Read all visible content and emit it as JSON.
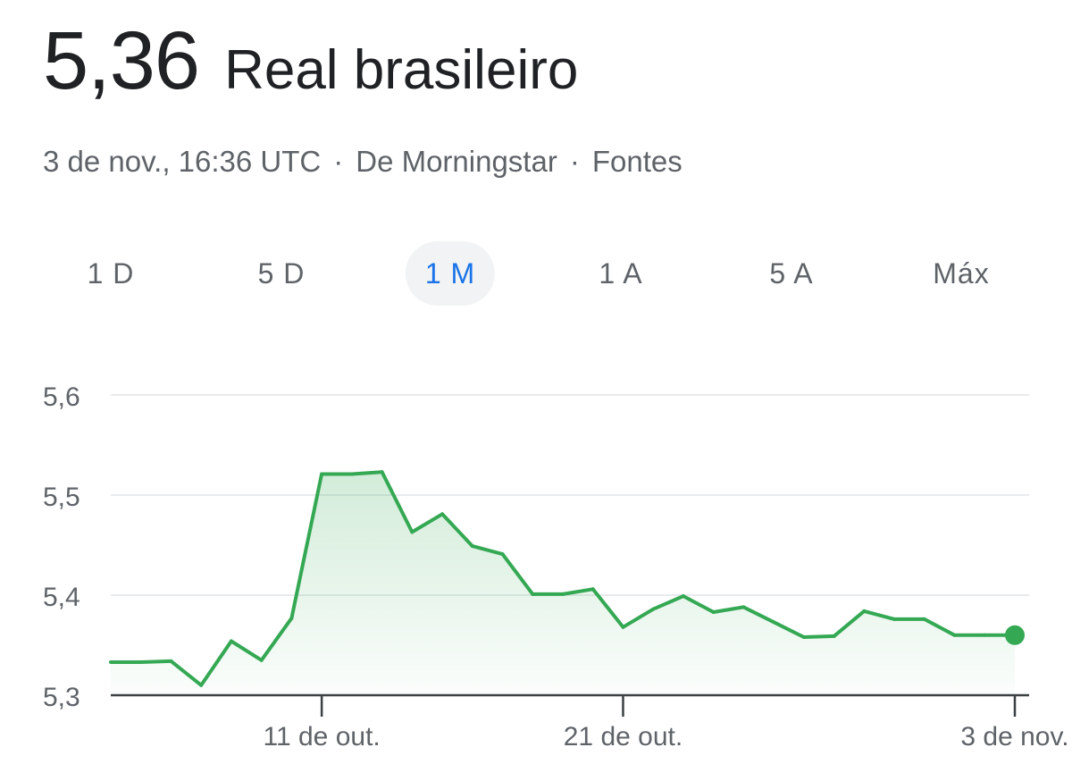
{
  "header": {
    "price": "5,36",
    "currency_name": "Real brasileiro"
  },
  "meta": {
    "timestamp": "3 de nov., 16:36 UTC",
    "separator": "·",
    "source": "De Morningstar",
    "sources_link": "Fontes"
  },
  "tabs": [
    {
      "label": "1 D",
      "active": false
    },
    {
      "label": "5 D",
      "active": false
    },
    {
      "label": "1 M",
      "active": true
    },
    {
      "label": "1 A",
      "active": false
    },
    {
      "label": "5 A",
      "active": false
    },
    {
      "label": "Máx",
      "active": false
    }
  ],
  "colors": {
    "line": "#34a853",
    "fill_top": "#34a853",
    "grid": "#e8eaed",
    "axis": "#5f6368",
    "accent": "#1a73e8"
  },
  "chart_data": {
    "type": "area",
    "title": "",
    "xlabel": "",
    "ylabel": "",
    "ylim": [
      5.3,
      5.6
    ],
    "yticks": [
      5.3,
      5.4,
      5.5,
      5.6
    ],
    "ytick_labels": [
      "5,3",
      "5,4",
      "5,5",
      "5,6"
    ],
    "xticks": [
      {
        "date": "2023-10-11",
        "label": "11 de out."
      },
      {
        "date": "2023-10-21",
        "label": "21 de out."
      },
      {
        "date": "2023-11-03",
        "label": "3 de nov."
      }
    ],
    "grid": true,
    "series": [
      {
        "x": [
          "2023-10-04",
          "2023-10-05",
          "2023-10-06",
          "2023-10-07",
          "2023-10-08",
          "2023-10-09",
          "2023-10-10",
          "2023-10-11",
          "2023-10-12",
          "2023-10-13",
          "2023-10-14",
          "2023-10-15",
          "2023-10-16",
          "2023-10-17",
          "2023-10-18",
          "2023-10-19",
          "2023-10-20",
          "2023-10-21",
          "2023-10-22",
          "2023-10-23",
          "2023-10-24",
          "2023-10-25",
          "2023-10-26",
          "2023-10-27",
          "2023-10-28",
          "2023-10-29",
          "2023-10-30",
          "2023-10-31",
          "2023-11-01",
          "2023-11-02",
          "2023-11-03"
        ],
        "values": [
          5.333,
          5.333,
          5.334,
          5.31,
          5.354,
          5.335,
          5.377,
          5.521,
          5.521,
          5.523,
          5.463,
          5.481,
          5.449,
          5.441,
          5.401,
          5.401,
          5.406,
          5.368,
          5.386,
          5.399,
          5.383,
          5.388,
          5.373,
          5.358,
          5.359,
          5.384,
          5.376,
          5.376,
          5.36,
          5.36,
          5.36
        ]
      }
    ],
    "last_point_marker": true
  }
}
